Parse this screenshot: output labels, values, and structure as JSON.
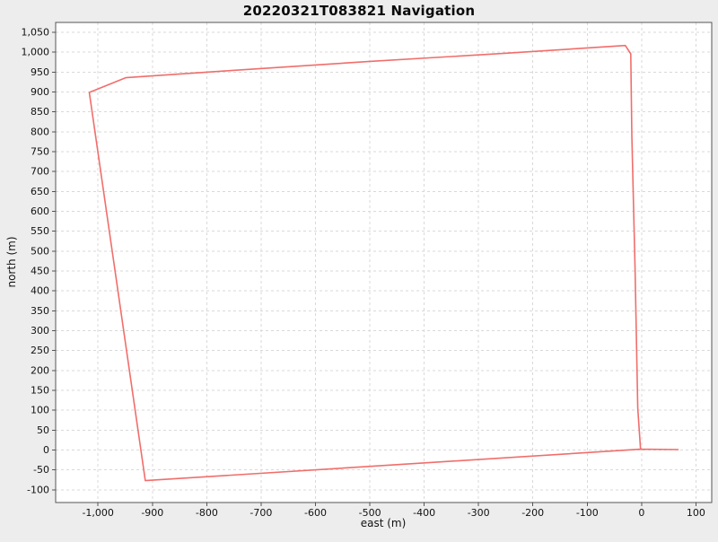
{
  "chart_data": {
    "type": "line",
    "title": "20220321T083821 Navigation",
    "xlabel": "east (m)",
    "ylabel": "north (m)",
    "xlim": [
      -1078,
      129
    ],
    "ylim": [
      -132,
      1075
    ],
    "x_ticks": [
      -1000,
      -900,
      -800,
      -700,
      -600,
      -500,
      -400,
      -300,
      -200,
      -100,
      0,
      100
    ],
    "y_ticks": [
      -100,
      -50,
      0,
      50,
      100,
      150,
      200,
      250,
      300,
      350,
      400,
      450,
      500,
      550,
      600,
      650,
      700,
      750,
      800,
      850,
      900,
      950,
      1000,
      1050
    ],
    "grid": true,
    "grid_style": "dashed",
    "legend_position": "none",
    "series": [
      {
        "points": [
          [
            67,
            1
          ],
          [
            -2,
            2
          ],
          [
            -913,
            -77
          ],
          [
            -1016,
            899
          ],
          [
            -949,
            936
          ],
          [
            -767,
            953
          ],
          [
            -500,
            977
          ],
          [
            -256,
            997
          ],
          [
            -30,
            1017
          ],
          [
            -20,
            996
          ],
          [
            -18,
            790
          ],
          [
            -12,
            455
          ],
          [
            -7,
            105
          ],
          [
            -2,
            2
          ]
        ]
      }
    ],
    "colors": {
      "line": "#f06e6b",
      "figure_bg": "#ededed",
      "plot_bg": "#ffffff",
      "grid": "#d9d9d9",
      "axis": "#555555",
      "text": "#111111"
    }
  }
}
